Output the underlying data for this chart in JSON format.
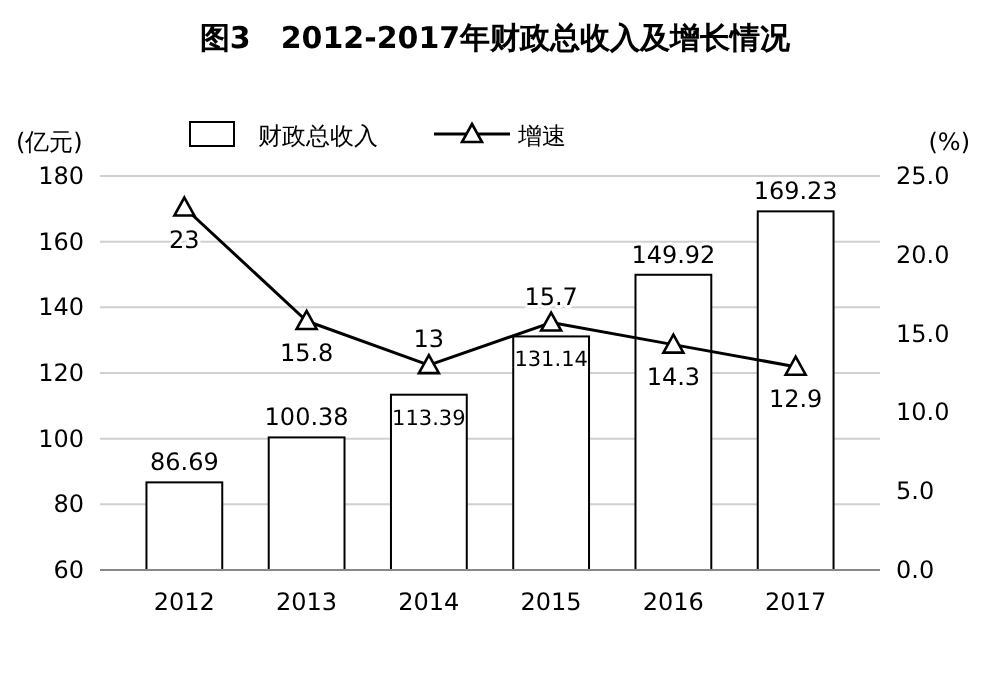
{
  "chart_data": {
    "type": "bar",
    "title": "图3　2012-2017年财政总收入及增长情况",
    "ylabel": "(亿元)",
    "y2label": "(%)",
    "categories": [
      "2012",
      "2013",
      "2014",
      "2015",
      "2016",
      "2017"
    ],
    "series": [
      {
        "name": "财政总收入",
        "color": "#ffffff",
        "values": [
          86.69,
          100.38,
          113.39,
          131.14,
          149.92,
          169.23
        ]
      },
      {
        "name": "增速",
        "type": "line",
        "axis": "y2",
        "color": "#000000",
        "marker": "triangle",
        "values": [
          23,
          15.8,
          13,
          15.7,
          14.3,
          12.9
        ]
      }
    ],
    "ylim": [
      60,
      180
    ],
    "yticks": [
      60,
      80,
      100,
      120,
      140,
      160,
      180
    ],
    "y2lim": [
      0,
      25
    ],
    "y2ticks": [
      {
        "value": 0,
        "label": "0.0"
      },
      {
        "value": 5,
        "label": "5.0"
      },
      {
        "value": 10,
        "label": "10.0"
      },
      {
        "value": 15,
        "label": "15.0"
      },
      {
        "value": 20,
        "label": "20.0"
      },
      {
        "value": 25,
        "label": "25.0"
      }
    ],
    "grid": "y",
    "legend": "top",
    "data_labels": true
  }
}
